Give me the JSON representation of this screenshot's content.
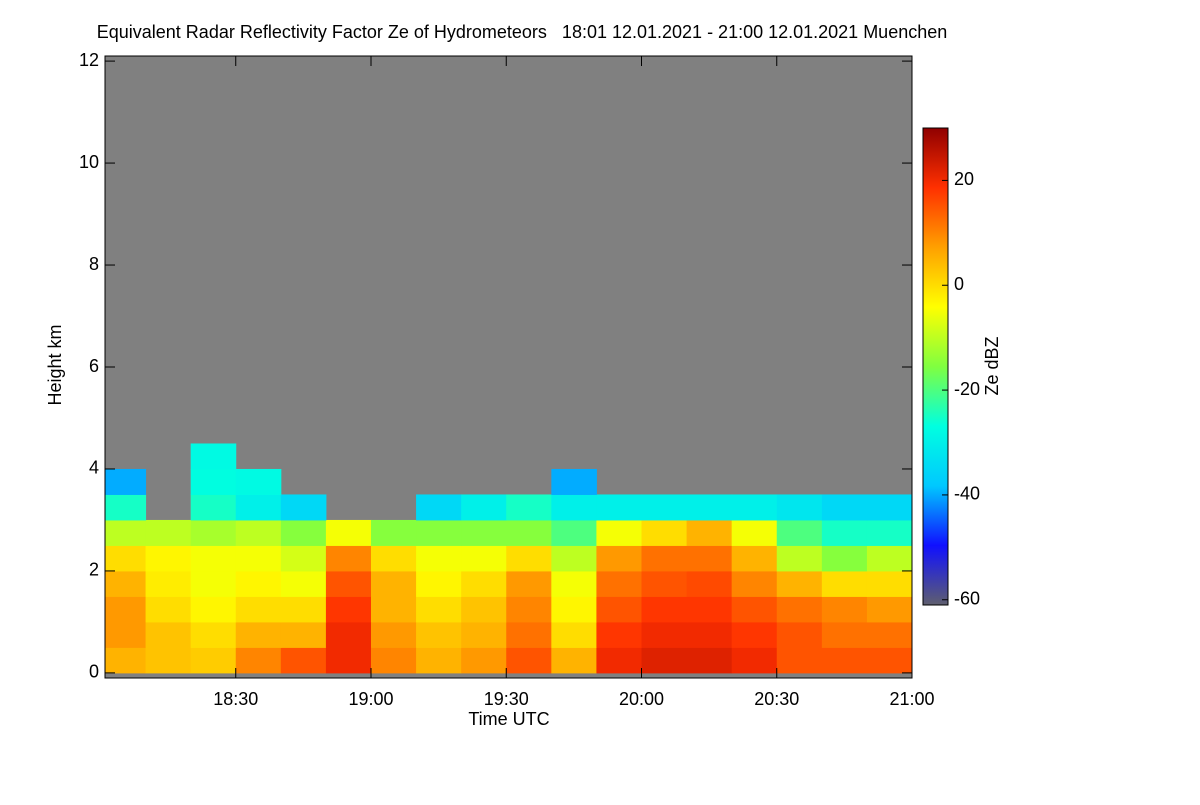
{
  "chart_data": {
    "type": "heatmap",
    "title": "Equivalent Radar Reflectivity Factor Ze of Hydrometeors   18:01 12.01.2021 - 21:00 12.01.2021 Muenchen",
    "xlabel": "Time UTC",
    "ylabel": "Height km",
    "colorbar_label": "Ze dBZ",
    "xlim": [
      "18:01",
      "21:00"
    ],
    "xticks": [
      "18:30",
      "19:00",
      "19:30",
      "20:00",
      "20:30",
      "21:00"
    ],
    "ylim": [
      -0.1,
      12.1
    ],
    "yticks": [
      0,
      2,
      4,
      6,
      8,
      10,
      12
    ],
    "zlim": [
      -61,
      30
    ],
    "zticks": [
      -60,
      -40,
      -20,
      0,
      20
    ],
    "colorscale": [
      "#5f5f6e",
      "#1010ff",
      "#00c8ff",
      "#00ffe0",
      "#80ff40",
      "#ffff00",
      "#ffa000",
      "#ff3000",
      "#900000"
    ],
    "nodata_color": "#808080",
    "x": [
      "18:01",
      "18:10",
      "18:20",
      "18:30",
      "18:40",
      "18:50",
      "19:00",
      "19:10",
      "19:20",
      "19:30",
      "19:40",
      "19:50",
      "20:00",
      "20:10",
      "20:20",
      "20:30",
      "20:40",
      "20:50",
      "21:00"
    ],
    "y": [
      0,
      0.5,
      1,
      1.5,
      2,
      2.5,
      3,
      3.5,
      4,
      4.5
    ],
    "z": [
      [
        5,
        3,
        2,
        10,
        15,
        20,
        10,
        5,
        8,
        15,
        5,
        20,
        22,
        22,
        20,
        15,
        15,
        15
      ],
      [
        8,
        3,
        0,
        5,
        5,
        20,
        8,
        3,
        5,
        12,
        0,
        18,
        20,
        20,
        18,
        15,
        12,
        12
      ],
      [
        8,
        0,
        -3,
        0,
        0,
        18,
        5,
        0,
        3,
        10,
        -3,
        15,
        18,
        18,
        15,
        12,
        10,
        8
      ],
      [
        5,
        -2,
        -5,
        -3,
        -5,
        15,
        5,
        -3,
        0,
        8,
        -5,
        12,
        15,
        16,
        10,
        5,
        0,
        0
      ],
      [
        0,
        -3,
        -5,
        -5,
        -8,
        10,
        0,
        -5,
        -5,
        0,
        -10,
        8,
        12,
        12,
        5,
        -10,
        -15,
        -10
      ],
      [
        -10,
        -10,
        -12,
        -10,
        -15,
        -5,
        -15,
        -15,
        -15,
        -15,
        -20,
        -5,
        0,
        5,
        -5,
        -20,
        -25,
        -25
      ],
      [
        -25,
        null,
        -25,
        -30,
        -35,
        null,
        null,
        -35,
        -30,
        -25,
        -30,
        -30,
        -30,
        -30,
        -30,
        -32,
        -35,
        -35
      ],
      [
        -40,
        null,
        -27,
        -28,
        null,
        null,
        null,
        null,
        null,
        null,
        -40,
        null,
        null,
        null,
        null,
        null,
        null,
        null
      ],
      [
        null,
        null,
        -28,
        null,
        null,
        null,
        null,
        null,
        null,
        null,
        null,
        null,
        null,
        null,
        null,
        null,
        null,
        null
      ]
    ]
  }
}
